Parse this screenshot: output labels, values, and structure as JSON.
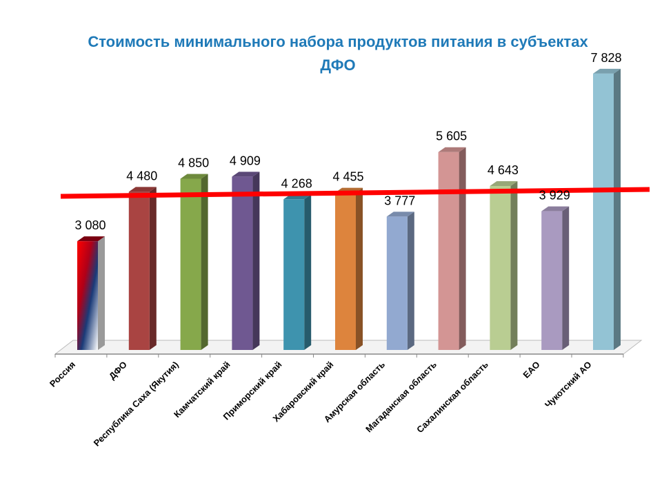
{
  "chart_data": {
    "type": "bar",
    "title": "Стоимость минимального набора продуктов питания в субъектах ДФО",
    "xlabel": "",
    "ylabel": "",
    "ylim": [
      0,
      8300
    ],
    "categories": [
      "Россия",
      "ДФО",
      "Республика Саха (Якутия)",
      "Камчатский край",
      "Приморский край",
      "Хабаровский край",
      "Амурская область",
      "Магаданская область",
      "Сахалинская область",
      "ЕАО",
      "Чукотский АО"
    ],
    "values": [
      3080,
      4480,
      4850,
      4909,
      4268,
      4455,
      3777,
      5605,
      4643,
      3929,
      7828
    ],
    "value_labels": [
      "3 080",
      "4 480",
      "4 850",
      "4 909",
      "4 268",
      "4 455",
      "3 777",
      "5 605",
      "4 643",
      "3 929",
      "7 828"
    ],
    "bar_colors": [
      "#c00000",
      "#a94442",
      "#86a84b",
      "#6f5891",
      "#3e93ae",
      "#dd843d",
      "#92a9d0",
      "#d39594",
      "#b9cd92",
      "#a99ac0",
      "#93c3d4"
    ],
    "grid": false,
    "legend": "none",
    "reference_line_color": "#ff0000"
  }
}
